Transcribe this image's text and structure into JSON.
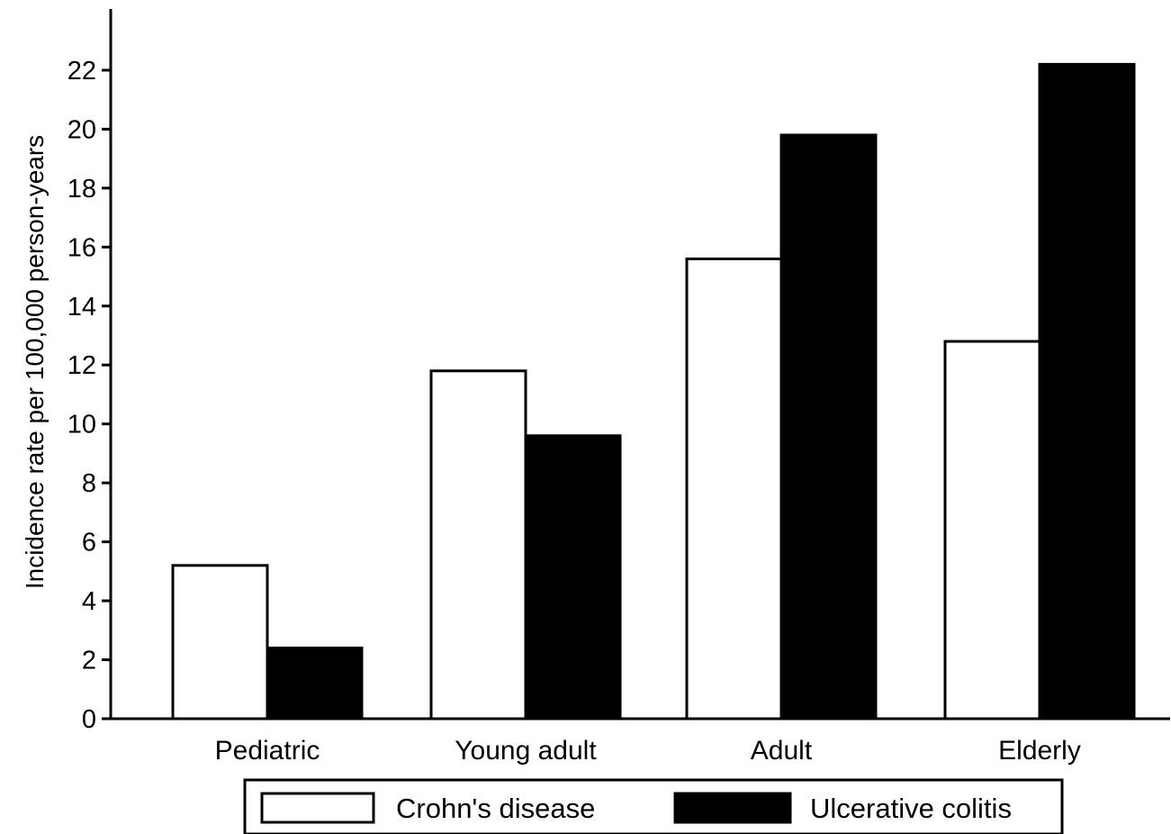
{
  "chart_data": {
    "type": "bar",
    "categories": [
      "Pediatric",
      "Young adult",
      "Adult",
      "Elderly"
    ],
    "series": [
      {
        "name": "Crohn's disease",
        "values": [
          5.2,
          11.8,
          15.6,
          12.8
        ],
        "color": "#ffffff"
      },
      {
        "name": "Ulcerative colitis",
        "values": [
          2.4,
          9.6,
          19.8,
          22.2
        ],
        "color": "#000000"
      }
    ],
    "title": "",
    "xlabel": "",
    "ylabel": "Incidence rate per 100,000 person-years",
    "ylim": [
      0,
      24
    ],
    "yticks": [
      0,
      2,
      4,
      6,
      8,
      10,
      12,
      14,
      16,
      18,
      20,
      22
    ],
    "grid": false,
    "legend_position": "bottom"
  }
}
